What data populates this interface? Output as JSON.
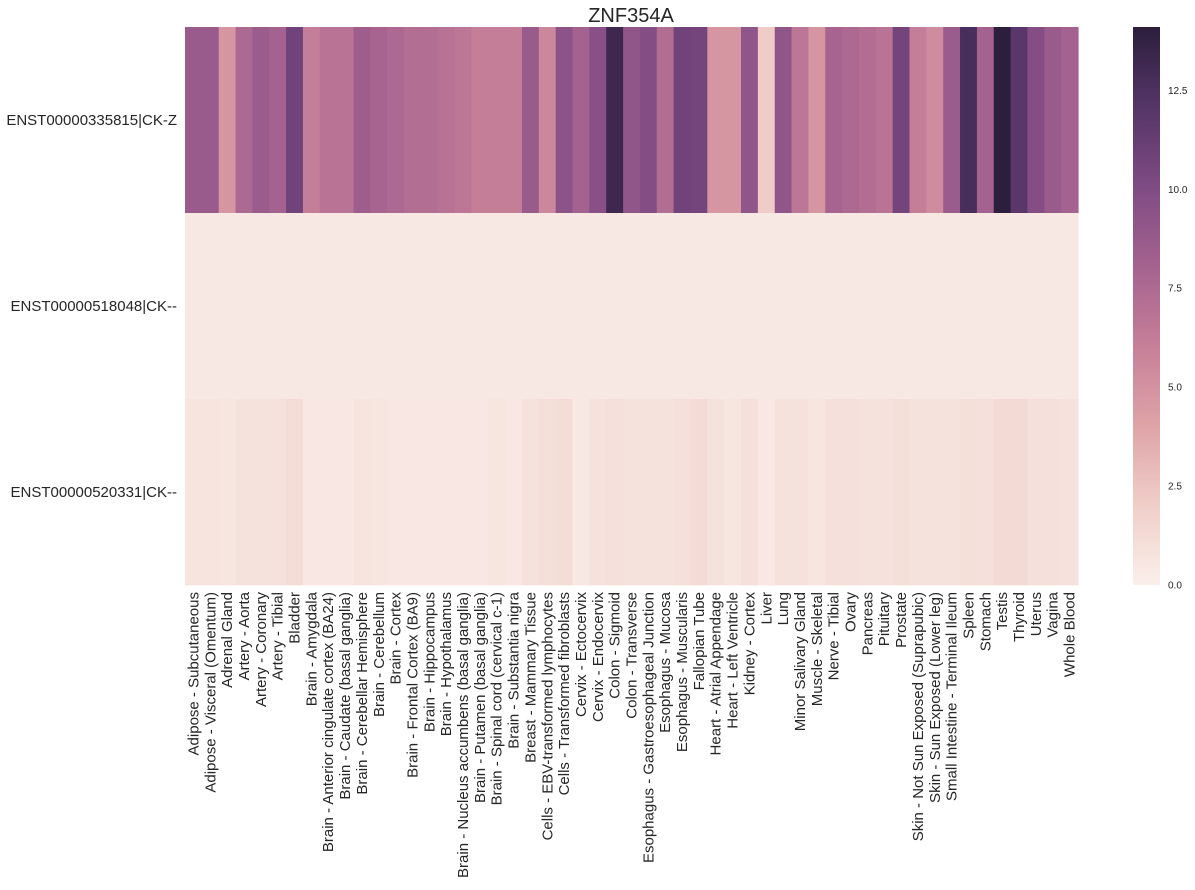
{
  "chart_data": {
    "type": "heatmap",
    "title": "ZNF354A",
    "xlabel": "",
    "ylabel": "",
    "rows": [
      "ENST00000335815|CK-Z",
      "ENST00000518048|CK--",
      "ENST00000520331|CK--"
    ],
    "columns": [
      "Adipose - Subcutaneous",
      "Adipose - Visceral (Omentum)",
      "Adrenal Gland",
      "Artery - Aorta",
      "Artery - Coronary",
      "Artery - Tibial",
      "Bladder",
      "Brain - Amygdala",
      "Brain - Anterior cingulate cortex (BA24)",
      "Brain - Caudate (basal ganglia)",
      "Brain - Cerebellar Hemisphere",
      "Brain - Cerebellum",
      "Brain - Cortex",
      "Brain - Frontal Cortex (BA9)",
      "Brain - Hippocampus",
      "Brain - Hypothalamus",
      "Brain - Nucleus accumbens (basal ganglia)",
      "Brain - Putamen (basal ganglia)",
      "Brain - Spinal cord (cervical c-1)",
      "Brain - Substantia nigra",
      "Breast - Mammary Tissue",
      "Cells - EBV-transformed lymphocytes",
      "Cells - Transformed fibroblasts",
      "Cervix - Ectocervix",
      "Cervix - Endocervix",
      "Colon - Sigmoid",
      "Colon - Transverse",
      "Esophagus - Gastroesophageal Junction",
      "Esophagus - Mucosa",
      "Esophagus - Muscularis",
      "Fallopian Tube",
      "Heart - Atrial Appendage",
      "Heart - Left Ventricle",
      "Kidney - Cortex",
      "Liver",
      "Lung",
      "Minor Salivary Gland",
      "Muscle - Skeletal",
      "Nerve - Tibial",
      "Ovary",
      "Pancreas",
      "Pituitary",
      "Prostate",
      "Skin - Not Sun Exposed (Suprapubic)",
      "Skin - Sun Exposed (Lower leg)",
      "Small Intestine - Terminal Ileum",
      "Spleen",
      "Stomach",
      "Testis",
      "Thyroid",
      "Uterus",
      "Vagina",
      "Whole Blood"
    ],
    "values": [
      [
        8.7,
        8.7,
        4.8,
        7.6,
        8.6,
        8.1,
        10.8,
        6.1,
        6.8,
        6.8,
        8.4,
        7.9,
        7.6,
        7.2,
        7.2,
        6.9,
        6.6,
        6.1,
        6.1,
        6.1,
        8.7,
        5.6,
        9.4,
        8.1,
        9.6,
        13.2,
        9.1,
        9.8,
        7.3,
        10.8,
        10.6,
        4.8,
        4.8,
        9.1,
        2.1,
        9.1,
        6.6,
        4.8,
        7.9,
        7.6,
        7.3,
        6.8,
        10.6,
        6.1,
        5.3,
        8.6,
        12.7,
        8.1,
        14.1,
        11.9,
        9.8,
        8.7,
        8.1
      ],
      [
        0.4,
        0.4,
        0.4,
        0.4,
        0.4,
        0.4,
        0.4,
        0.4,
        0.4,
        0.4,
        0.4,
        0.4,
        0.4,
        0.4,
        0.4,
        0.4,
        0.4,
        0.4,
        0.4,
        0.4,
        0.4,
        0.4,
        0.4,
        0.4,
        0.4,
        0.4,
        0.4,
        0.4,
        0.4,
        0.4,
        0.4,
        0.4,
        0.4,
        0.4,
        0.4,
        0.4,
        0.4,
        0.4,
        0.4,
        0.4,
        0.4,
        0.4,
        0.4,
        0.4,
        0.4,
        0.4,
        0.4,
        0.4,
        0.4,
        0.4,
        0.4,
        0.4,
        0.4
      ],
      [
        0.7,
        0.7,
        0.6,
        0.8,
        0.8,
        0.8,
        1.1,
        0.5,
        0.5,
        0.5,
        0.7,
        0.6,
        0.5,
        0.5,
        0.5,
        0.5,
        0.5,
        0.5,
        0.6,
        0.5,
        0.8,
        1.0,
        1.1,
        0.4,
        0.8,
        0.9,
        0.8,
        0.8,
        0.8,
        0.9,
        1.2,
        0.8,
        0.6,
        0.9,
        0.5,
        0.8,
        0.8,
        0.6,
        0.9,
        0.9,
        0.8,
        0.8,
        1.0,
        0.8,
        0.8,
        0.8,
        1.0,
        0.9,
        1.3,
        1.3,
        0.9,
        0.9,
        0.8
      ]
    ],
    "colorbar": {
      "min": 0,
      "max": 14.1,
      "ticks": [
        0.0,
        2.5,
        5.0,
        7.5,
        10.0,
        12.5
      ],
      "tick_labels": [
        "0.0",
        "2.5",
        "5.0",
        "7.5",
        "10.0",
        "12.5"
      ],
      "colors": [
        "#faefea",
        "#f0cec8",
        "#dea3a7",
        "#c67f98",
        "#a4628f",
        "#7f4b84",
        "#553567",
        "#2c1e3d"
      ]
    },
    "grid": false,
    "legend": "colorbar-right"
  }
}
